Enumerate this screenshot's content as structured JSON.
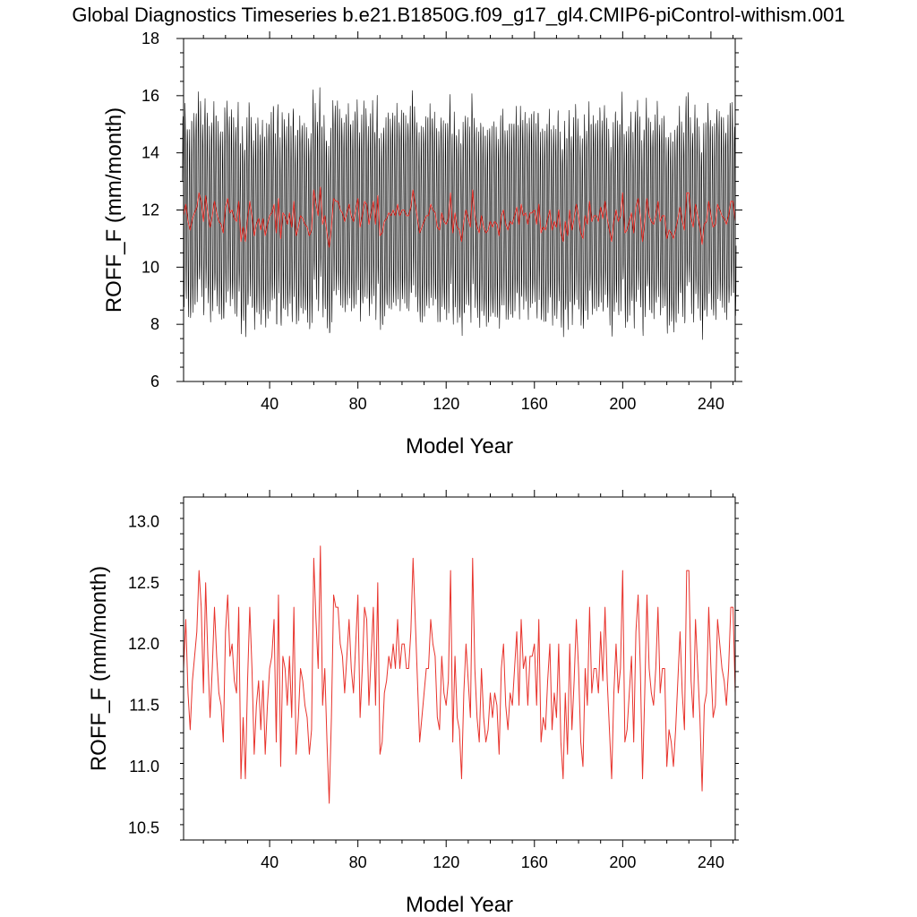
{
  "figure": {
    "title": "Global Diagnostics Timeseries b.e21.B1850G.f09_g17_gl4.CMIP6-piControl-withism.001"
  },
  "chart_data": [
    {
      "type": "line",
      "xlabel": "Model Year",
      "ylabel": "ROFF_F (mm/month)",
      "xlim": [
        1,
        251
      ],
      "ylim": [
        6,
        18
      ],
      "xticks": [
        "40",
        "80",
        "120",
        "160",
        "200",
        "240"
      ],
      "xtick_values": [
        40,
        80,
        120,
        160,
        200,
        240
      ],
      "yticks": [
        "6",
        "8",
        "10",
        "12",
        "14",
        "16",
        "18"
      ],
      "ytick_values": [
        6,
        8,
        10,
        12,
        14,
        16,
        18
      ],
      "grid": false,
      "series": [
        {
          "color": "#000000",
          "resolution": "monthly",
          "seasonal_range": [
            8.6,
            15.2
          ],
          "annual_mean_source": "annual series"
        },
        {
          "color": "#e8332c",
          "resolution": "annual",
          "source": "annual series"
        }
      ]
    },
    {
      "type": "line",
      "xlabel": "Model Year",
      "ylabel": "ROFF_F (mm/month)",
      "xlim": [
        1,
        251
      ],
      "ylim": [
        10.4,
        13.2
      ],
      "xticks": [
        "40",
        "80",
        "120",
        "160",
        "200",
        "240"
      ],
      "xtick_values": [
        40,
        80,
        120,
        160,
        200,
        240
      ],
      "yticks": [
        "10.5",
        "11.0",
        "11.5",
        "12.0",
        "12.5",
        "13.0"
      ],
      "ytick_values": [
        10.5,
        11.0,
        11.5,
        12.0,
        12.5,
        13.0
      ],
      "grid": false,
      "series": [
        {
          "color": "#e8332c",
          "resolution": "annual"
        }
      ]
    }
  ],
  "annual_series": {
    "x_start": 1,
    "values": [
      11.8,
      12.2,
      11.6,
      11.3,
      11.7,
      11.9,
      12.1,
      12.6,
      12.3,
      11.6,
      12.5,
      11.9,
      11.4,
      11.8,
      12.3,
      11.9,
      11.6,
      11.5,
      11.2,
      12.1,
      12.4,
      11.9,
      12.0,
      11.7,
      11.6,
      12.3,
      10.9,
      11.4,
      10.9,
      11.7,
      12.3,
      11.8,
      11.1,
      11.5,
      11.7,
      11.3,
      11.7,
      11.1,
      11.5,
      11.8,
      11.9,
      12.2,
      11.2,
      12.4,
      11.0,
      11.9,
      11.8,
      11.5,
      11.9,
      11.4,
      12.3,
      11.1,
      11.4,
      11.8,
      11.7,
      11.5,
      11.4,
      11.1,
      11.3,
      12.7,
      12.2,
      11.8,
      12.8,
      11.5,
      11.8,
      11.2,
      10.7,
      11.4,
      12.4,
      12.3,
      12.3,
      12.0,
      11.9,
      11.6,
      11.9,
      12.2,
      11.8,
      11.6,
      12.0,
      12.4,
      11.4,
      11.8,
      12.3,
      12.2,
      11.5,
      11.9,
      12.3,
      11.5,
      12.5,
      11.1,
      11.2,
      11.6,
      11.7,
      11.9,
      11.8,
      12.0,
      11.8,
      12.2,
      11.8,
      12.0,
      12.0,
      11.8,
      11.8,
      12.1,
      12.7,
      12.2,
      11.7,
      11.2,
      11.4,
      11.6,
      11.8,
      11.8,
      12.2,
      12.0,
      11.9,
      11.4,
      11.3,
      11.9,
      11.6,
      11.5,
      11.7,
      12.6,
      11.2,
      11.9,
      11.4,
      11.3,
      10.9,
      11.6,
      12.0,
      11.7,
      11.4,
      12.7,
      11.8,
      11.4,
      11.2,
      11.8,
      11.4,
      11.2,
      11.3,
      11.6,
      11.4,
      11.6,
      11.5,
      11.1,
      11.8,
      12.0,
      11.5,
      11.3,
      11.6,
      11.5,
      11.8,
      12.1,
      11.5,
      12.2,
      11.8,
      11.9,
      11.5,
      11.9,
      11.9,
      12.0,
      11.5,
      12.2,
      11.2,
      11.4,
      11.3,
      11.7,
      12.0,
      11.3,
      11.6,
      11.4,
      12.0,
      11.2,
      10.9,
      11.6,
      11.1,
      12.0,
      11.3,
      11.7,
      12.2,
      11.8,
      11.2,
      11.0,
      11.8,
      11.5,
      12.3,
      11.6,
      11.8,
      11.8,
      11.6,
      12.1,
      11.7,
      12.3,
      11.7,
      11.3,
      10.9,
      11.6,
      12.0,
      11.6,
      11.8,
      12.6,
      11.2,
      11.3,
      11.6,
      11.9,
      11.2,
      12.1,
      12.4,
      11.8,
      10.9,
      11.6,
      12.4,
      11.8,
      11.6,
      11.5,
      11.8,
      12.3,
      11.6,
      11.8,
      11.8,
      11.0,
      11.3,
      11.2,
      11.0,
      11.3,
      11.7,
      12.1,
      11.6,
      11.3,
      12.6,
      12.6,
      11.7,
      11.4,
      12.2,
      11.8,
      11.4,
      10.8,
      11.5,
      11.6,
      12.3,
      11.8,
      11.4,
      11.5,
      12.2,
      12.0,
      11.8,
      11.7,
      11.5,
      11.8,
      12.3,
      12.3,
      11.6
    ]
  }
}
